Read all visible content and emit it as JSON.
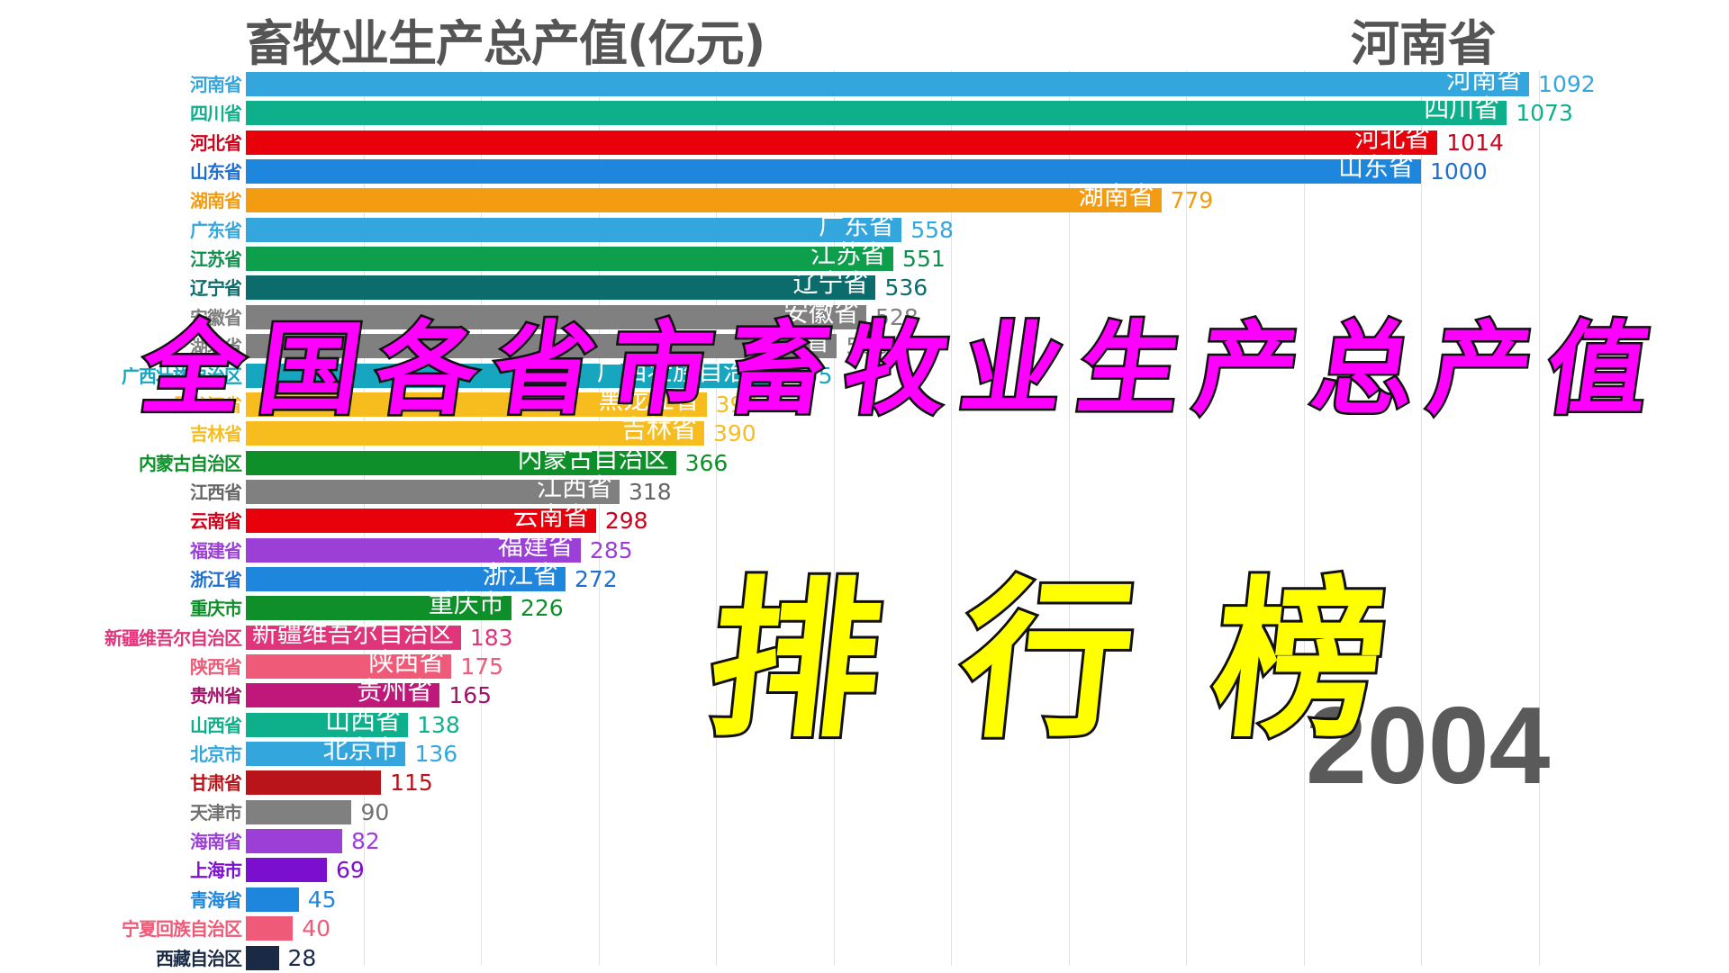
{
  "header": {
    "title": "畜牧业生产总产值(亿元)",
    "leader": "河南省",
    "year": "2004"
  },
  "overlay": {
    "line1": "全国各省市畜牧业生产总产值",
    "line2": "排行榜",
    "line1_color": "#ff00ff",
    "line2_color": "#ffff00"
  },
  "chart_data": {
    "type": "bar",
    "orientation": "horizontal",
    "title": "畜牧业生产总产值(亿元)",
    "subtitle": "2004",
    "xlabel": "",
    "ylabel": "",
    "xlim": [
      0,
      1100
    ],
    "grid": true,
    "categories": [
      "河南省",
      "四川省",
      "河北省",
      "山东省",
      "湖南省",
      "广东省",
      "江苏省",
      "辽宁省",
      "安徽省",
      "湖北省",
      "广西壮族自治区",
      "黑龙江省",
      "吉林省",
      "内蒙古自治区",
      "江西省",
      "云南省",
      "福建省",
      "浙江省",
      "重庆市",
      "新疆维吾尔自治区",
      "陕西省",
      "贵州省",
      "山西省",
      "北京市",
      "甘肃省",
      "天津市",
      "海南省",
      "上海市",
      "青海省",
      "宁夏回族自治区",
      "西藏自治区"
    ],
    "values": [
      1092,
      1073,
      1014,
      1000,
      779,
      558,
      551,
      536,
      528,
      503,
      455,
      392,
      390,
      366,
      318,
      298,
      285,
      272,
      226,
      183,
      175,
      165,
      138,
      136,
      115,
      90,
      82,
      69,
      45,
      40,
      28
    ],
    "colors": [
      "#33a6dd",
      "#0db08a",
      "#e8000b",
      "#1f86dd",
      "#f39c12",
      "#33a6dd",
      "#0e9f4c",
      "#0c6b6b",
      "#808080",
      "#808080",
      "#17a6bf",
      "#f7bd1e",
      "#f7bd1e",
      "#0e8f2a",
      "#808080",
      "#e8000b",
      "#9b3fd6",
      "#1f86dd",
      "#0e8f2a",
      "#e0357a",
      "#ee5a77",
      "#c0187a",
      "#0db08a",
      "#33a6dd",
      "#b81419",
      "#808080",
      "#9b3fd6",
      "#7b0fd0",
      "#1f86dd",
      "#ee5a77",
      "#1a2a45"
    ],
    "label_colors": [
      "#33a6dd",
      "#0db08a",
      "#d0021b",
      "#1f6fd0",
      "#f39c12",
      "#33a6dd",
      "#0e8f4c",
      "#0c6b6b",
      "#808080",
      "#808080",
      "#17a6bf",
      "#f7bd1e",
      "#f7bd1e",
      "#0e8f2a",
      "#666666",
      "#d0021b",
      "#9b3fd6",
      "#1f6fd0",
      "#0e8f2a",
      "#e0357a",
      "#ee5a77",
      "#a0146a",
      "#0db08a",
      "#33a6dd",
      "#b81419",
      "#707070",
      "#9b3fd6",
      "#7b0fd0",
      "#1f86dd",
      "#ee5a77",
      "#1a2a45"
    ],
    "show_inner_label": [
      true,
      true,
      true,
      true,
      true,
      true,
      true,
      true,
      true,
      true,
      true,
      true,
      true,
      true,
      true,
      true,
      true,
      true,
      true,
      true,
      true,
      true,
      true,
      true,
      false,
      false,
      false,
      false,
      false,
      false,
      false
    ]
  }
}
